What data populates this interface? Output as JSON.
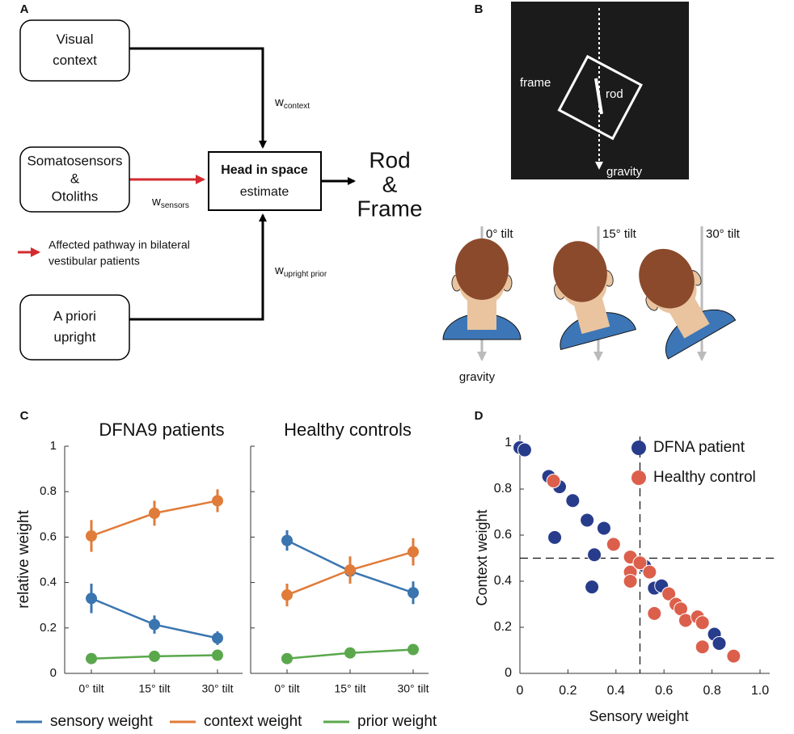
{
  "panel_labels": [
    "A",
    "B",
    "C",
    "D"
  ],
  "diagram_a": {
    "inputs": [
      {
        "lines": [
          "Visual",
          "context"
        ]
      },
      {
        "lines": [
          "Somatosensors",
          "&",
          "Otoliths"
        ]
      },
      {
        "lines": [
          "A priori",
          "upright"
        ]
      }
    ],
    "center": {
      "lines": [
        "Head in space",
        "estimate"
      ]
    },
    "output": {
      "lines": [
        "Rod",
        "&",
        "Frame"
      ]
    },
    "weights": [
      {
        "base": "w",
        "sub": "context"
      },
      {
        "base": "w",
        "sub": "sensors"
      },
      {
        "base": "w",
        "sub": "upright prior"
      }
    ],
    "legend": {
      "lines": [
        "Affected pathway in bilateral",
        "vestibular patients"
      ]
    }
  },
  "diagram_b": {
    "frame": "frame",
    "rod": "rod",
    "gravity": "gravity",
    "tilts": [
      "0° tilt",
      "15° tilt",
      "30° tilt"
    ],
    "head_gravity": "gravity"
  },
  "chart_data": [
    {
      "type": "line",
      "title": "DFNA9 patients",
      "ylabel": "relative weight",
      "categories": [
        "0° tilt",
        "15° tilt",
        "30° tilt"
      ],
      "ylim": [
        0,
        1
      ],
      "yticks": [
        0,
        0.2,
        0.4,
        0.6,
        0.8,
        1
      ],
      "series": [
        {
          "name": "sensory weight",
          "color": "#3b75af",
          "values": [
            0.33,
            0.215,
            0.155
          ],
          "errors": [
            0.065,
            0.04,
            0.03
          ]
        },
        {
          "name": "context weight",
          "color": "#e07b39",
          "values": [
            0.605,
            0.705,
            0.76
          ],
          "errors": [
            0.07,
            0.055,
            0.05
          ]
        },
        {
          "name": "prior weight",
          "color": "#5aa74c",
          "values": [
            0.065,
            0.075,
            0.08
          ],
          "errors": [
            0.02,
            0.02,
            0.02
          ]
        }
      ]
    },
    {
      "type": "line",
      "title": "Healthy controls",
      "categories": [
        "0° tilt",
        "15° tilt",
        "30° tilt"
      ],
      "ylim": [
        0,
        1
      ],
      "yticks": [
        0,
        0.2,
        0.4,
        0.6,
        0.8,
        1
      ],
      "series": [
        {
          "color": "#3b75af",
          "values": [
            0.585,
            0.45,
            0.355
          ],
          "errors": [
            0.045,
            0.055,
            0.05
          ]
        },
        {
          "color": "#e07b39",
          "values": [
            0.345,
            0.455,
            0.535
          ],
          "errors": [
            0.05,
            0.06,
            0.06
          ]
        },
        {
          "color": "#5aa74c",
          "values": [
            0.065,
            0.09,
            0.105
          ],
          "errors": [
            0.01,
            0.01,
            0.01
          ]
        }
      ]
    },
    {
      "type": "scatter",
      "xlabel": "Sensory weight",
      "ylabel": "Context weight",
      "xlim": [
        0,
        1
      ],
      "ylim": [
        0,
        1
      ],
      "xticks": [
        0,
        0.2,
        0.4,
        0.6,
        0.8,
        {
          "value": 1,
          "label": "1.0"
        }
      ],
      "yticks": [
        0,
        0.2,
        0.4,
        0.6,
        0.8,
        1
      ],
      "vline": 0.5,
      "hline": 0.5,
      "legend": "upper right",
      "series": [
        {
          "name": "DFNA patient",
          "color": "#283c8c",
          "x": [
            0.0,
            0.02,
            0.12,
            0.145,
            0.165,
            0.22,
            0.28,
            0.31,
            0.3,
            0.35,
            0.52,
            0.56,
            0.59,
            0.81,
            0.83
          ],
          "y": [
            0.98,
            0.97,
            0.855,
            0.59,
            0.81,
            0.75,
            0.665,
            0.515,
            0.375,
            0.63,
            0.465,
            0.37,
            0.38,
            0.17,
            0.13
          ]
        },
        {
          "name": "Healthy control",
          "color": "#dc5f4b",
          "x": [
            0.14,
            0.39,
            0.46,
            0.46,
            0.46,
            0.5,
            0.54,
            0.56,
            0.62,
            0.65,
            0.67,
            0.69,
            0.74,
            0.76,
            0.76,
            0.89
          ],
          "y": [
            0.835,
            0.56,
            0.505,
            0.44,
            0.4,
            0.48,
            0.44,
            0.26,
            0.345,
            0.3,
            0.28,
            0.23,
            0.245,
            0.22,
            0.115,
            0.075
          ]
        }
      ]
    }
  ]
}
